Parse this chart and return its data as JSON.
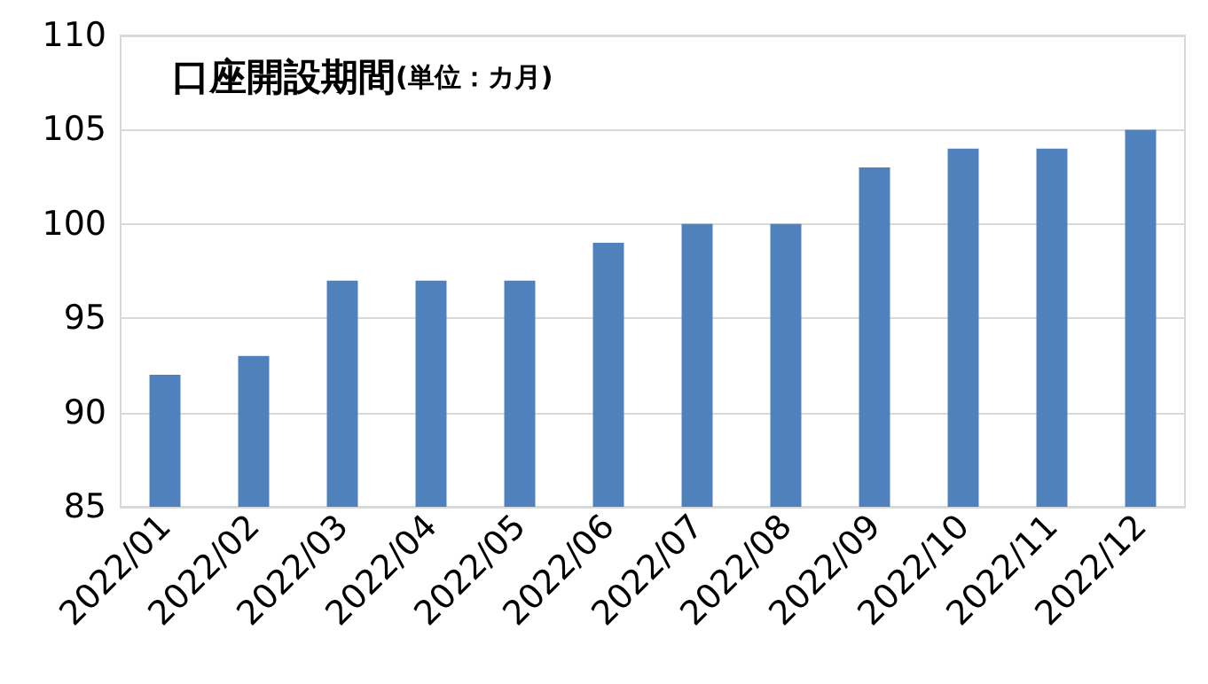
{
  "chart_data": {
    "type": "bar",
    "title": "口座開設期間",
    "subtitle": "(単位：カ月)",
    "categories": [
      "2022/01",
      "2022/02",
      "2022/03",
      "2022/04",
      "2022/05",
      "2022/06",
      "2022/07",
      "2022/08",
      "2022/09",
      "2022/10",
      "2022/11",
      "2022/12"
    ],
    "values": [
      92,
      93,
      97,
      97,
      97,
      99,
      100,
      100,
      103,
      104,
      104,
      105
    ],
    "color": "#4f81bd",
    "ylim": [
      85,
      110
    ],
    "yticks": [
      85,
      90,
      95,
      100,
      105,
      110
    ],
    "grid": "y"
  }
}
